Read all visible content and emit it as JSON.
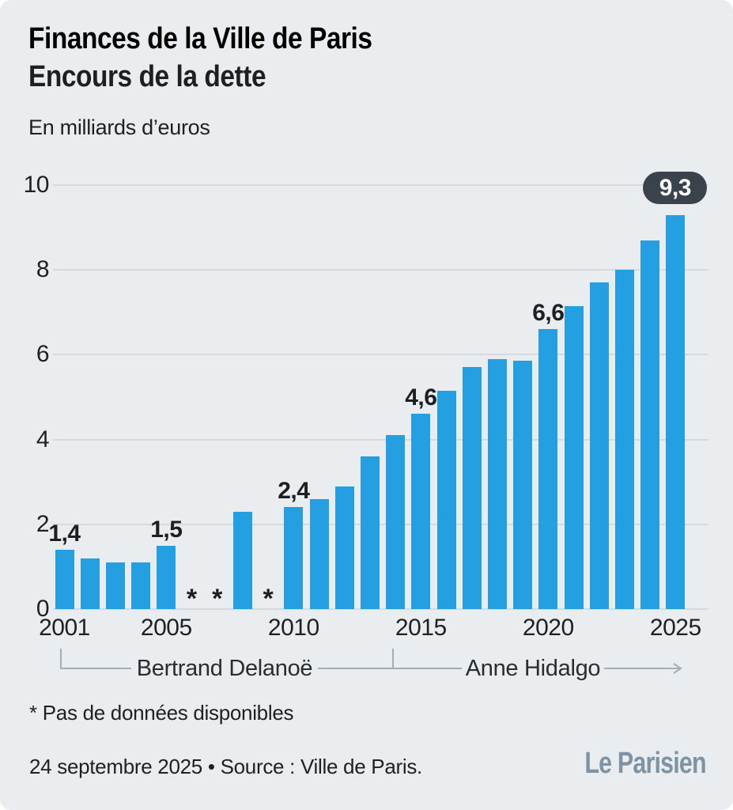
{
  "header": {
    "title": "Finances de la Ville de Paris",
    "subtitle": "Encours de la dette",
    "unit_label": "En milliards d’euros"
  },
  "chart_data": {
    "type": "bar",
    "title": "Encours de la dette de la Ville de Paris",
    "ylabel": "En milliards d’euros",
    "ylim": [
      0,
      10
    ],
    "y_ticks": [
      0,
      2,
      4,
      6,
      8,
      10
    ],
    "x_tick_years": [
      2001,
      2005,
      2010,
      2015,
      2020,
      2025
    ],
    "grid": true,
    "missing_marker": "*",
    "points": [
      {
        "year": 2001,
        "value": 1.4,
        "label": "1,4"
      },
      {
        "year": 2002,
        "value": 1.2
      },
      {
        "year": 2003,
        "value": 1.1
      },
      {
        "year": 2004,
        "value": 1.1
      },
      {
        "year": 2005,
        "value": 1.5,
        "label": "1,5"
      },
      {
        "year": 2006,
        "value": null
      },
      {
        "year": 2007,
        "value": null
      },
      {
        "year": 2008,
        "value": 2.3
      },
      {
        "year": 2009,
        "value": null
      },
      {
        "year": 2010,
        "value": 2.4,
        "label": "2,4"
      },
      {
        "year": 2011,
        "value": 2.6
      },
      {
        "year": 2012,
        "value": 2.9
      },
      {
        "year": 2013,
        "value": 3.6
      },
      {
        "year": 2014,
        "value": 4.1
      },
      {
        "year": 2015,
        "value": 4.6,
        "label": "4,6"
      },
      {
        "year": 2016,
        "value": 5.15
      },
      {
        "year": 2017,
        "value": 5.7
      },
      {
        "year": 2018,
        "value": 5.9
      },
      {
        "year": 2019,
        "value": 5.85
      },
      {
        "year": 2020,
        "value": 6.6,
        "label": "6,6"
      },
      {
        "year": 2021,
        "value": 7.15
      },
      {
        "year": 2022,
        "value": 7.7
      },
      {
        "year": 2023,
        "value": 8.0
      },
      {
        "year": 2024,
        "value": 8.7
      },
      {
        "year": 2025,
        "value": 9.3,
        "label": "9,3",
        "label_style": "badge"
      }
    ]
  },
  "timeline": {
    "mayors": [
      {
        "name": "Bertrand Delanoë"
      },
      {
        "name": "Anne Hidalgo"
      }
    ]
  },
  "footnote": "* Pas de données disponibles",
  "footer": {
    "source_line": "24 septembre 2025 • Source : Ville de Paris.",
    "logo_text": "Le Parisien"
  },
  "colors": {
    "accent_blue": "#239fe2",
    "badge_bg": "#3a434b",
    "badge_text": "#ffffff",
    "background": "#e9edf0",
    "text_dark": "#1d1f20",
    "gridline": "#d6dadd",
    "timeline_line": "#a6adb3",
    "logo": "#7e93a4"
  }
}
